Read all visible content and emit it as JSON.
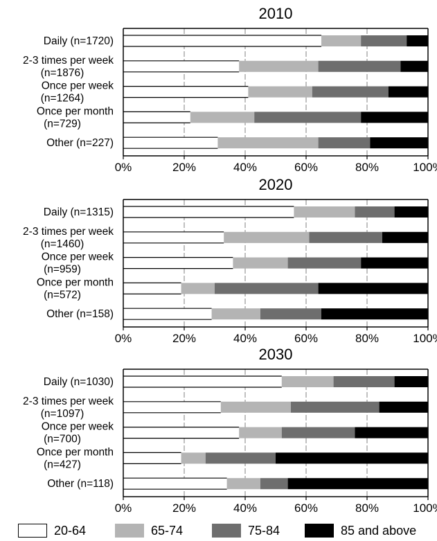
{
  "chart_data": [
    {
      "type": "bar",
      "orientation": "horizontal",
      "stacked": true,
      "title": "2010",
      "categories": [
        "Daily (n=1720)",
        "2-3 times per week (n=1876)",
        "Once per week (n=1264)",
        "Once per month (n=729)",
        "Other (n=227)"
      ],
      "series": [
        {
          "name": "20-64",
          "values": [
            65,
            38,
            41,
            22,
            31
          ]
        },
        {
          "name": "65-74",
          "values": [
            13,
            26,
            21,
            21,
            33
          ]
        },
        {
          "name": "75-84",
          "values": [
            15,
            27,
            25,
            35,
            17
          ]
        },
        {
          "name": "85 and above",
          "values": [
            7,
            9,
            13,
            22,
            19
          ]
        }
      ],
      "xlim": [
        0,
        100
      ],
      "xticks": [
        "0%",
        "20%",
        "40%",
        "60%",
        "80%",
        "100%"
      ],
      "grid": true
    },
    {
      "type": "bar",
      "orientation": "horizontal",
      "stacked": true,
      "title": "2020",
      "categories": [
        "Daily (n=1315)",
        "2-3 times per week (n=1460)",
        "Once per week (n=959)",
        "Once per month (n=572)",
        "Other (n=158)"
      ],
      "series": [
        {
          "name": "20-64",
          "values": [
            56,
            33,
            36,
            19,
            29
          ]
        },
        {
          "name": "65-74",
          "values": [
            20,
            28,
            18,
            11,
            16
          ]
        },
        {
          "name": "75-84",
          "values": [
            13,
            24,
            24,
            34,
            20
          ]
        },
        {
          "name": "85 and above",
          "values": [
            11,
            15,
            22,
            36,
            35
          ]
        }
      ],
      "xlim": [
        0,
        100
      ],
      "xticks": [
        "0%",
        "20%",
        "40%",
        "60%",
        "80%",
        "100%"
      ],
      "grid": true
    },
    {
      "type": "bar",
      "orientation": "horizontal",
      "stacked": true,
      "title": "2030",
      "categories": [
        "Daily (n=1030)",
        "2-3 times per week (n=1097)",
        "Once per week (n=700)",
        "Once per month (n=427)",
        "Other (n=118)"
      ],
      "series": [
        {
          "name": "20-64",
          "values": [
            52,
            32,
            38,
            19,
            34
          ]
        },
        {
          "name": "65-74",
          "values": [
            17,
            23,
            14,
            8,
            11
          ]
        },
        {
          "name": "75-84",
          "values": [
            20,
            29,
            24,
            23,
            9
          ]
        },
        {
          "name": "85 and above",
          "values": [
            11,
            16,
            24,
            50,
            46
          ]
        }
      ],
      "xlim": [
        0,
        100
      ],
      "xticks": [
        "0%",
        "20%",
        "40%",
        "60%",
        "80%",
        "100%"
      ],
      "grid": true
    }
  ],
  "legend": {
    "placement": "bottom",
    "items": [
      {
        "label": "20-64",
        "color": "#ffffff"
      },
      {
        "label": "65-74",
        "color": "#b4b4b4"
      },
      {
        "label": "75-84",
        "color": "#6e6e6e"
      },
      {
        "label": "85 and above",
        "color": "#000000"
      }
    ]
  },
  "colors": {
    "series": [
      "#ffffff",
      "#b4b4b4",
      "#6e6e6e",
      "#000000"
    ],
    "grid": "#808080",
    "axis": "#000000"
  }
}
